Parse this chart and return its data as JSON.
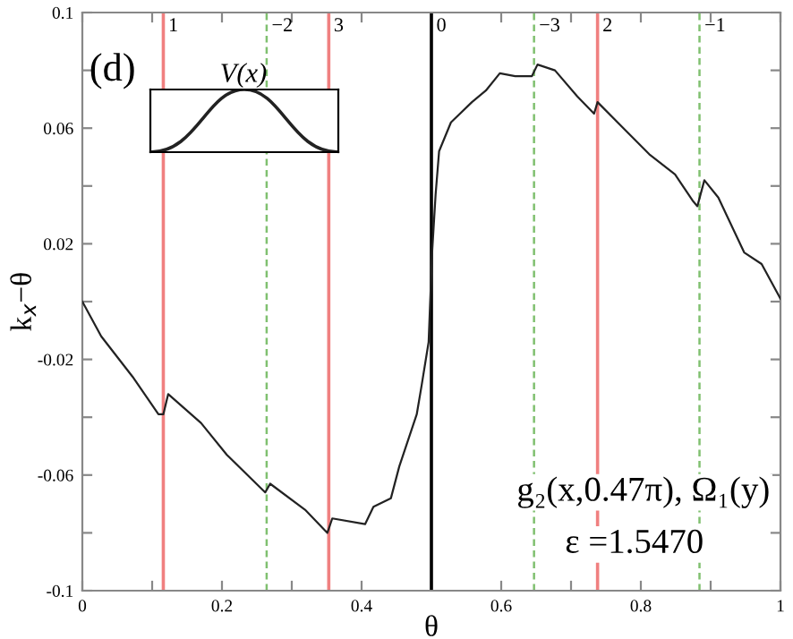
{
  "chart_data": {
    "type": "line",
    "xlabel": "θ",
    "ylabel": "k$_{x}$−θ",
    "x": [
      0.0,
      0.027,
      0.072,
      0.109,
      0.116,
      0.123,
      0.17,
      0.207,
      0.262,
      0.269,
      0.319,
      0.351,
      0.358,
      0.405,
      0.417,
      0.442,
      0.454,
      0.479,
      0.486,
      0.496,
      0.501,
      0.506,
      0.511,
      0.528,
      0.558,
      0.578,
      0.598,
      0.62,
      0.644,
      0.652,
      0.677,
      0.709,
      0.733,
      0.738,
      0.775,
      0.812,
      0.849,
      0.874,
      0.881,
      0.891,
      0.911,
      0.948,
      0.973,
      1.0
    ],
    "series": [
      {
        "color": "#222222",
        "values": [
          0.0,
          -0.012,
          -0.026,
          -0.039,
          -0.039,
          -0.032,
          -0.042,
          -0.053,
          -0.066,
          -0.063,
          -0.072,
          -0.08,
          -0.075,
          -0.077,
          -0.071,
          -0.068,
          -0.057,
          -0.039,
          -0.029,
          -0.014,
          0.017,
          0.037,
          0.052,
          0.062,
          0.069,
          0.073,
          0.079,
          0.078,
          0.078,
          0.082,
          0.08,
          0.071,
          0.065,
          0.069,
          0.06,
          0.051,
          0.044,
          0.035,
          0.033,
          0.042,
          0.036,
          0.017,
          0.013,
          0.001
        ]
      }
    ],
    "xlim": [
      0,
      1
    ],
    "ylim": [
      -0.1,
      0.1
    ],
    "xticks": [
      0,
      {
        "value": 0.1,
        "label": null
      },
      0.2,
      {
        "value": 0.3,
        "label": null
      },
      0.4,
      {
        "value": 0.5,
        "label": null
      },
      0.6,
      {
        "value": 0.7,
        "label": null
      },
      0.8,
      {
        "value": 0.9,
        "label": null
      },
      1
    ],
    "yticks": [
      -0.1,
      {
        "value": -0.08,
        "label": null
      },
      -0.06,
      {
        "value": -0.04,
        "label": null
      },
      -0.02,
      {
        "value": 0,
        "label": null
      },
      0.02,
      {
        "value": 0.04,
        "label": null
      },
      0.06,
      {
        "value": 0.08,
        "label": null
      },
      0.1
    ],
    "ref_lines": [
      {
        "axis": "x",
        "value": 0.116,
        "color": "#f08080",
        "line_style": "solid"
      },
      {
        "axis": "x",
        "value": 0.264,
        "color": "#80c070",
        "line_style": "dashed"
      },
      {
        "axis": "x",
        "value": 0.353,
        "color": "#f08080",
        "line_style": "solid"
      },
      {
        "axis": "x",
        "value": 0.5,
        "color": "#000000",
        "line_style": "solid"
      },
      {
        "axis": "x",
        "value": 0.647,
        "color": "#80c070",
        "line_style": "dashed"
      },
      {
        "axis": "x",
        "value": 0.738,
        "color": "#f08080",
        "line_style": "solid"
      },
      {
        "axis": "x",
        "value": 0.884,
        "color": "#80c070",
        "line_style": "dashed"
      }
    ],
    "annotations": [
      "(d)",
      "V(x)",
      "g₂(x,0.47π), Ω₁(y)",
      "ε =1.5470",
      {
        "text": "1",
        "x": 0.116,
        "y": 0.1
      },
      {
        "text": "−2",
        "x": 0.264,
        "y": 0.1
      },
      {
        "text": "3",
        "x": 0.353,
        "y": 0.1
      },
      {
        "text": "0",
        "x": 0.5,
        "y": 0.1
      },
      {
        "text": "−3",
        "x": 0.647,
        "y": 0.1
      },
      {
        "text": "2",
        "x": 0.738,
        "y": 0.1
      },
      {
        "text": "−1",
        "x": 0.884,
        "y": 0.1
      }
    ],
    "grid": false,
    "legend": false,
    "marker": "none",
    "line_style": "solid"
  }
}
